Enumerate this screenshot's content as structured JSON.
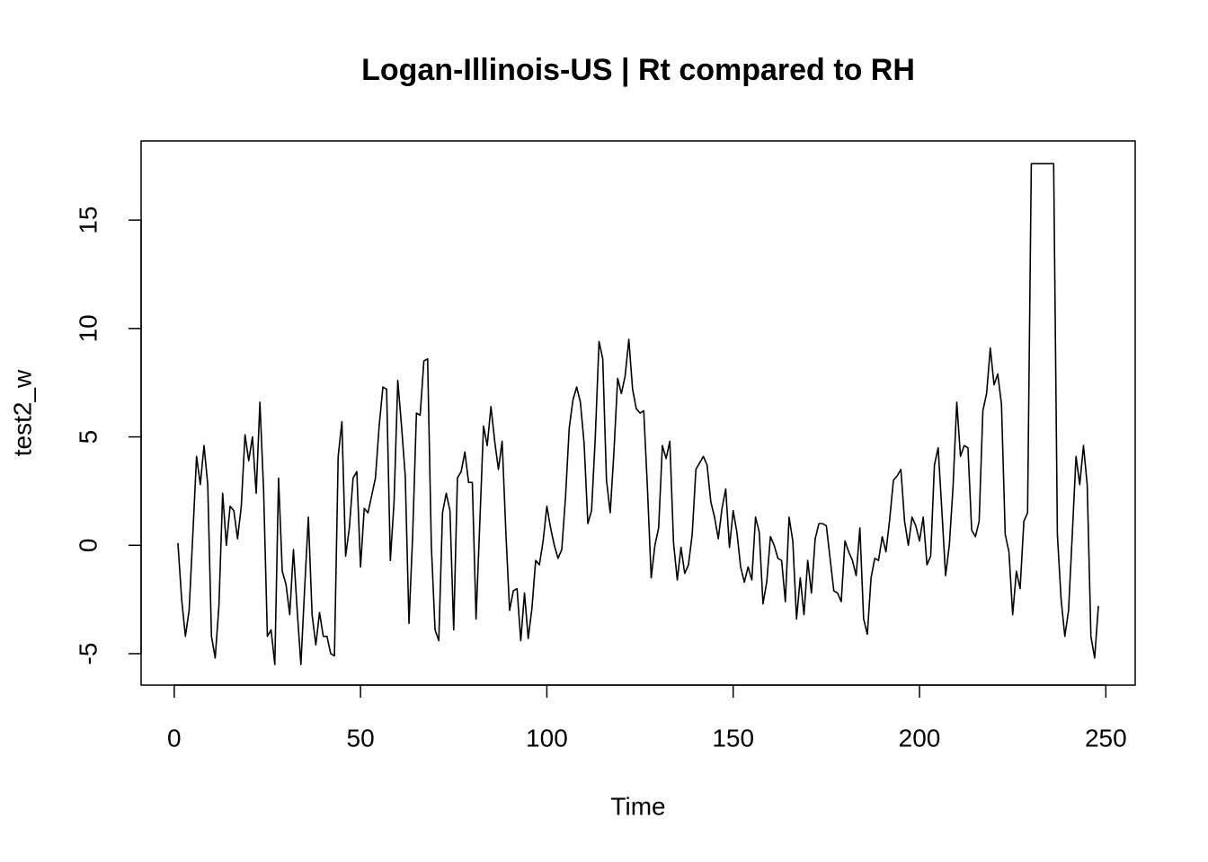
{
  "chart_data": {
    "type": "line",
    "title": "Logan-Illinois-US | Rt compared to RH",
    "x_label": "Time",
    "y_label": "test2_w",
    "x": [
      1,
      2,
      3,
      4,
      5,
      6,
      7,
      8,
      9,
      10,
      11,
      12,
      13,
      14,
      15,
      16,
      17,
      18,
      19,
      20,
      21,
      22,
      23,
      24,
      25,
      26,
      27,
      28,
      29,
      30,
      31,
      32,
      33,
      34,
      35,
      36,
      37,
      38,
      39,
      40,
      41,
      42,
      43,
      44,
      45,
      46,
      47,
      48,
      49,
      50,
      51,
      52,
      53,
      54,
      55,
      56,
      57,
      58,
      59,
      60,
      61,
      62,
      63,
      64,
      65,
      66,
      67,
      68,
      69,
      70,
      71,
      72,
      73,
      74,
      75,
      76,
      77,
      78,
      79,
      80,
      81,
      82,
      83,
      84,
      85,
      86,
      87,
      88,
      89,
      90,
      91,
      92,
      93,
      94,
      95,
      96,
      97,
      98,
      99,
      100,
      101,
      102,
      103,
      104,
      105,
      106,
      107,
      108,
      109,
      110,
      111,
      112,
      113,
      114,
      115,
      116,
      117,
      118,
      119,
      120,
      121,
      122,
      123,
      124,
      125,
      126,
      127,
      128,
      129,
      130,
      131,
      132,
      133,
      134,
      135,
      136,
      137,
      138,
      139,
      140,
      141,
      142,
      143,
      144,
      145,
      146,
      147,
      148,
      149,
      150,
      151,
      152,
      153,
      154,
      155,
      156,
      157,
      158,
      159,
      160,
      161,
      162,
      163,
      164,
      165,
      166,
      167,
      168,
      169,
      170,
      171,
      172,
      173,
      174,
      175,
      176,
      177,
      178,
      179,
      180,
      181,
      182,
      183,
      184,
      185,
      186,
      187,
      188,
      189,
      190,
      191,
      192,
      193,
      194,
      195,
      196,
      197,
      198,
      199,
      200,
      201,
      202,
      203,
      204,
      205,
      206,
      207,
      208,
      209,
      210,
      211,
      212,
      213,
      214,
      215,
      216,
      217,
      218,
      219,
      220,
      221,
      222,
      223,
      224,
      225,
      226,
      227,
      228,
      229,
      230,
      231,
      232,
      233,
      234,
      235,
      236,
      237,
      238,
      239,
      240,
      241,
      242,
      243,
      244,
      245,
      246,
      247,
      248
    ],
    "values": [
      0.1,
      -2.5,
      -4.2,
      -3,
      0.5,
      4.1,
      2.8,
      4.6,
      2.8,
      -4.2,
      -5.2,
      -2.8,
      2.4,
      0,
      1.8,
      1.6,
      0.3,
      1.8,
      5.1,
      3.9,
      5,
      2.4,
      6.6,
      2.5,
      -4.2,
      -3.9,
      -5.5,
      3.1,
      -1.2,
      -1.8,
      -3.2,
      -0.2,
      -3,
      -5.5,
      -2,
      1.3,
      -3.2,
      -4.6,
      -3.1,
      -4.2,
      -4.2,
      -5,
      -5.1,
      4.1,
      5.7,
      -0.5,
      0.8,
      3.1,
      3.4,
      -1,
      1.7,
      1.5,
      2.3,
      3.1,
      5.5,
      7.3,
      7.2,
      -0.7,
      2,
      7.6,
      5.5,
      3.2,
      -3.6,
      0.5,
      6.1,
      6,
      8.5,
      8.6,
      0,
      -3.9,
      -4.4,
      1.5,
      2.4,
      1.6,
      -3.9,
      3.1,
      3.4,
      4.3,
      2.9,
      2.9,
      -3.4,
      1,
      5.5,
      4.6,
      6.4,
      4.8,
      3.5,
      4.8,
      0.6,
      -3,
      -2.1,
      -2,
      -4.4,
      -2.2,
      -4.3,
      -2.9,
      -0.7,
      -0.9,
      0.2,
      1.8,
      0.8,
      0,
      -0.6,
      -0.2,
      2.2,
      5.4,
      6.7,
      7.3,
      6.6,
      4.7,
      1,
      1.6,
      5,
      9.4,
      8.6,
      3,
      1.5,
      4.3,
      7.7,
      7,
      7.8,
      9.5,
      7.2,
      6.3,
      6.1,
      6.2,
      2.6,
      -1.5,
      0,
      0.8,
      4.6,
      4,
      4.8,
      0.1,
      -1.6,
      -0.1,
      -1.3,
      -0.9,
      0.5,
      3.5,
      3.8,
      4.1,
      3.7,
      2,
      1.3,
      0.3,
      1.7,
      2.6,
      -0.1,
      1.6,
      0.6,
      -1,
      -1.7,
      -1,
      -1.6,
      1.3,
      0.6,
      -2.7,
      -1.7,
      0.4,
      0,
      -0.6,
      -0.7,
      -2.6,
      1.3,
      0.2,
      -3.4,
      -1.5,
      -3.2,
      -0.7,
      -2.2,
      0.3,
      1,
      1,
      0.9,
      -0.6,
      -2.1,
      -2.2,
      -2.6,
      0.2,
      -0.3,
      -0.7,
      -1.4,
      0.8,
      -3.4,
      -4.1,
      -1.5,
      -0.6,
      -0.7,
      0.4,
      -0.3,
      1.2,
      3,
      3.2,
      3.5,
      1.1,
      0,
      1.3,
      0.9,
      0.2,
      1.3,
      -0.9,
      -0.5,
      3.7,
      4.5,
      1.6,
      -1.4,
      0,
      2.7,
      6.6,
      4.1,
      4.6,
      4.5,
      0.7,
      0.4,
      1.1,
      6.2,
      7,
      9.1,
      7.4,
      7.9,
      6.5,
      0.5,
      -0.3,
      -3.2,
      -1.2,
      -2,
      1.1,
      1.5,
      17.6,
      17.6,
      17.6,
      17.6,
      17.6,
      17.6,
      17.6,
      0.5,
      -2.5,
      -4.2,
      -3,
      0.5,
      4.1,
      2.8,
      4.6,
      2.8,
      -4.2,
      -5.2,
      -2.8
    ],
    "color": "#000000",
    "xlim": [
      -8.88,
      257.88
    ],
    "ylim": [
      -6.45,
      18.65
    ],
    "xticks": [
      0,
      50,
      100,
      150,
      200,
      250
    ],
    "yticks": [
      -5,
      0,
      5,
      10,
      15
    ]
  }
}
